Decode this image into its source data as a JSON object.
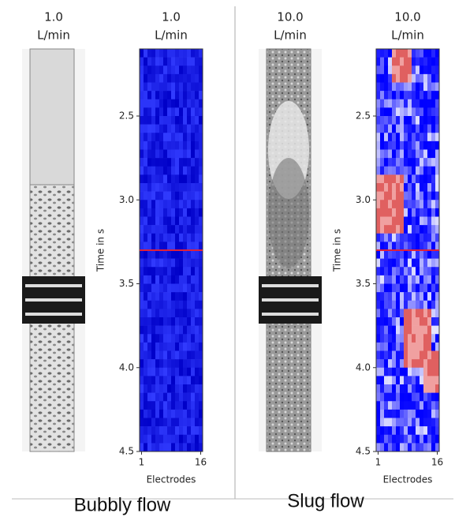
{
  "panels": [
    {
      "flow": "1.0",
      "unit": "L/min",
      "ylabel": "Time in s",
      "xlabel": "Electrodes",
      "ylim": [
        2.1,
        4.5
      ],
      "xlim": [
        0.5,
        16.5
      ],
      "yticks": [
        2.5,
        {
          "value": 3,
          "label": "3.0"
        },
        3.5,
        {
          "value": 4,
          "label": "4.0"
        },
        4.5
      ],
      "xticks": [
        1,
        16
      ],
      "marker": 3.3,
      "caption": "Bubbly flow"
    },
    {
      "flow": "10.0",
      "unit": "L/min",
      "ylabel": "Time in s",
      "xlabel": "Electrodes",
      "ylim": [
        2.1,
        4.5
      ],
      "xlim": [
        0.5,
        16.5
      ],
      "yticks": [
        2.5,
        {
          "value": 3,
          "label": "3.0"
        },
        3.5,
        {
          "value": 4,
          "label": "4.0"
        },
        4.5
      ],
      "xticks": [
        1,
        16
      ],
      "marker": 3.3,
      "caption": "Slug flow"
    }
  ]
}
